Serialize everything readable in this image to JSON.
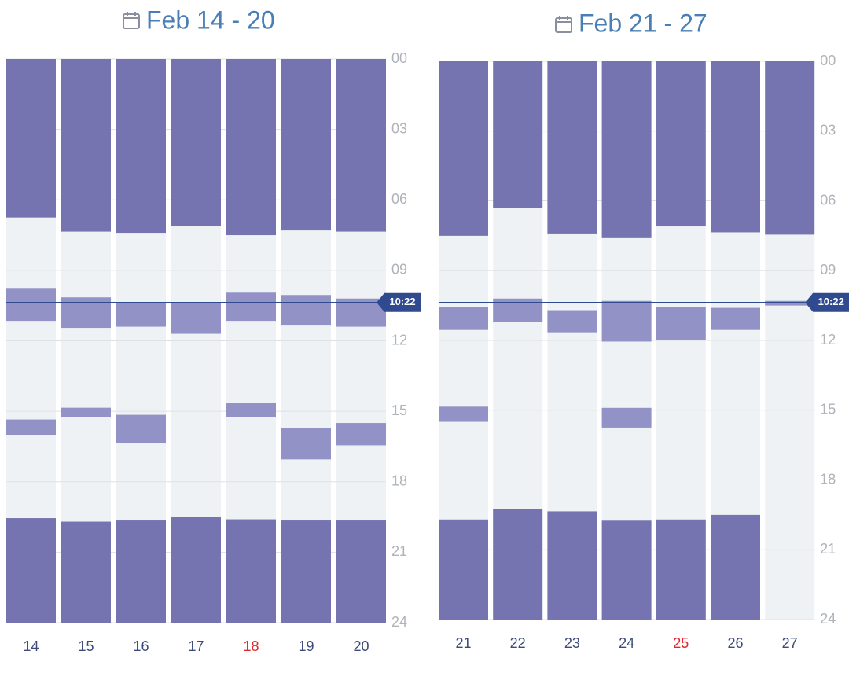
{
  "chart_data": [
    {
      "type": "range",
      "title": "Feb 14 - 20",
      "categories": [
        "14",
        "15",
        "16",
        "17",
        "18",
        "19",
        "20"
      ],
      "category_colors": [
        "#3d4a7c",
        "#3d4a7c",
        "#3d4a7c",
        "#3d4a7c",
        "#e0282e",
        "#3d4a7c",
        "#3d4a7c"
      ],
      "segments": [
        [
          {
            "start": 0,
            "end": 6.75,
            "color": "#7574b0"
          },
          {
            "start": 9.75,
            "end": 11.15,
            "color": "#9392c6"
          },
          {
            "start": 15.35,
            "end": 16,
            "color": "#9392c6"
          },
          {
            "start": 19.55,
            "end": 24,
            "color": "#7574b0"
          }
        ],
        [
          {
            "start": 0,
            "end": 7.35,
            "color": "#7574b0"
          },
          {
            "start": 10.15,
            "end": 11.45,
            "color": "#9392c6"
          },
          {
            "start": 14.85,
            "end": 15.25,
            "color": "#9392c6"
          },
          {
            "start": 19.7,
            "end": 24,
            "color": "#7574b0"
          }
        ],
        [
          {
            "start": 0,
            "end": 7.4,
            "color": "#7574b0"
          },
          {
            "start": 10.4,
            "end": 11.4,
            "color": "#9392c6"
          },
          {
            "start": 15.15,
            "end": 16.35,
            "color": "#9392c6"
          },
          {
            "start": 19.65,
            "end": 24,
            "color": "#7574b0"
          }
        ],
        [
          {
            "start": 0,
            "end": 7.1,
            "color": "#7574b0"
          },
          {
            "start": 10.4,
            "end": 11.7,
            "color": "#9392c6"
          },
          {
            "start": 19.5,
            "end": 24,
            "color": "#7574b0"
          }
        ],
        [
          {
            "start": 0,
            "end": 7.5,
            "color": "#7574b0"
          },
          {
            "start": 9.95,
            "end": 11.15,
            "color": "#9392c6"
          },
          {
            "start": 14.65,
            "end": 15.25,
            "color": "#9392c6"
          },
          {
            "start": 19.6,
            "end": 24,
            "color": "#7574b0"
          }
        ],
        [
          {
            "start": 0,
            "end": 7.3,
            "color": "#7574b0"
          },
          {
            "start": 10.05,
            "end": 11.35,
            "color": "#9392c6"
          },
          {
            "start": 15.7,
            "end": 17.05,
            "color": "#9392c6"
          },
          {
            "start": 19.65,
            "end": 24,
            "color": "#7574b0"
          }
        ],
        [
          {
            "start": 0,
            "end": 7.35,
            "color": "#7574b0"
          },
          {
            "start": 10.2,
            "end": 11.4,
            "color": "#9392c6"
          },
          {
            "start": 15.5,
            "end": 16.45,
            "color": "#9392c6"
          },
          {
            "start": 19.65,
            "end": 24,
            "color": "#7574b0"
          }
        ]
      ],
      "ylim": [
        0,
        24
      ],
      "yticks": [
        {
          "value": 0,
          "label": "00"
        },
        {
          "value": 3,
          "label": "03"
        },
        {
          "value": 6,
          "label": "06"
        },
        {
          "value": 9,
          "label": "09"
        },
        12,
        15,
        18,
        21,
        24
      ],
      "now": {
        "value": 10.37,
        "label": "10:22"
      },
      "grid": true
    },
    {
      "type": "range",
      "title": "Feb 21 - 27",
      "categories": [
        "21",
        "22",
        "23",
        "24",
        "25",
        "26",
        "27"
      ],
      "category_colors": [
        "#3d4a7c",
        "#3d4a7c",
        "#3d4a7c",
        "#3d4a7c",
        "#e0282e",
        "#3d4a7c",
        "#3d4a7c"
      ],
      "segments": [
        [
          {
            "start": 0,
            "end": 7.5,
            "color": "#7574b0"
          },
          {
            "start": 10.55,
            "end": 11.55,
            "color": "#9392c6"
          },
          {
            "start": 14.85,
            "end": 15.5,
            "color": "#9392c6"
          },
          {
            "start": 19.7,
            "end": 24,
            "color": "#7574b0"
          }
        ],
        [
          {
            "start": 0,
            "end": 6.3,
            "color": "#7574b0"
          },
          {
            "start": 10.2,
            "end": 11.2,
            "color": "#9392c6"
          },
          {
            "start": 19.25,
            "end": 24,
            "color": "#7574b0"
          }
        ],
        [
          {
            "start": 0,
            "end": 7.4,
            "color": "#7574b0"
          },
          {
            "start": 10.7,
            "end": 11.65,
            "color": "#9392c6"
          },
          {
            "start": 19.35,
            "end": 24,
            "color": "#7574b0"
          }
        ],
        [
          {
            "start": 0,
            "end": 7.6,
            "color": "#7574b0"
          },
          {
            "start": 10.3,
            "end": 12.05,
            "color": "#9392c6"
          },
          {
            "start": 14.9,
            "end": 15.75,
            "color": "#9392c6"
          },
          {
            "start": 19.75,
            "end": 24,
            "color": "#7574b0"
          }
        ],
        [
          {
            "start": 0,
            "end": 7.1,
            "color": "#7574b0"
          },
          {
            "start": 10.55,
            "end": 12,
            "color": "#9392c6"
          },
          {
            "start": 19.7,
            "end": 24,
            "color": "#7574b0"
          }
        ],
        [
          {
            "start": 0,
            "end": 7.35,
            "color": "#7574b0"
          },
          {
            "start": 10.6,
            "end": 11.55,
            "color": "#9392c6"
          },
          {
            "start": 19.5,
            "end": 24,
            "color": "#7574b0"
          }
        ],
        [
          {
            "start": 0,
            "end": 7.45,
            "color": "#7574b0"
          },
          {
            "start": 10.3,
            "end": 10.5,
            "color": "#9392c6"
          }
        ]
      ],
      "ylim": [
        0,
        24
      ],
      "yticks": [
        {
          "value": 0,
          "label": "00"
        },
        {
          "value": 3,
          "label": "03"
        },
        {
          "value": 6,
          "label": "06"
        },
        {
          "value": 9,
          "label": "09"
        },
        12,
        15,
        18,
        21,
        24
      ],
      "now": {
        "value": 10.37,
        "label": "10:22"
      },
      "grid": true
    }
  ]
}
